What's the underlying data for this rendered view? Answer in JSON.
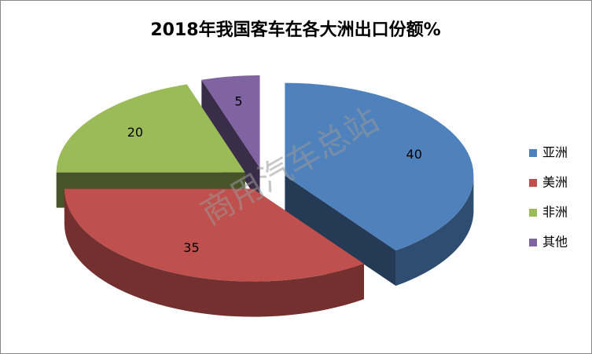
{
  "chart_data": {
    "type": "pie",
    "title": "2018年我国客车在各大洲出口份额%",
    "categories": [
      "亚洲",
      "美洲",
      "非洲",
      "其他"
    ],
    "values": [
      40,
      35,
      20,
      5
    ],
    "colors": [
      "#4f81bd",
      "#c0504d",
      "#9bbb59",
      "#8064a2"
    ],
    "legend": "right",
    "watermark": "商用汽车总站"
  }
}
